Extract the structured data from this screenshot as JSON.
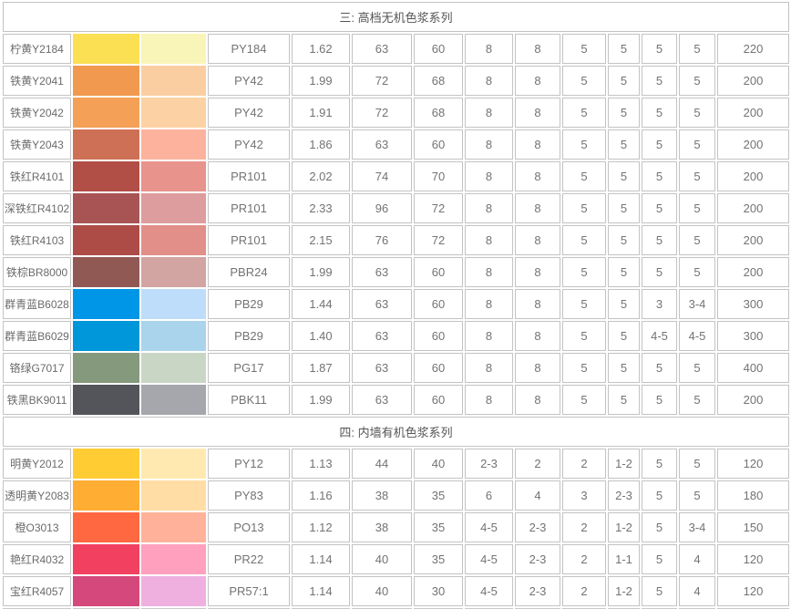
{
  "colors": {
    "border": "#c3c3c3",
    "text": "#737373",
    "title_text": "#555555",
    "background": "#ffffff"
  },
  "table": {
    "sections": [
      {
        "title": "三: 高档无机色浆系列",
        "rows": [
          {
            "name": "柠黄Y2184",
            "swatch": "#FCE054",
            "tint": "#F9F5B8",
            "index": "PY184",
            "density": "1.62",
            "values": [
              "63",
              "60",
              "8",
              "8",
              "5",
              "5",
              "5",
              "5",
              "220"
            ]
          },
          {
            "name": "铁黄Y2041",
            "swatch": "#F0994F",
            "tint": "#FBCEA2",
            "index": "PY42",
            "density": "1.99",
            "values": [
              "72",
              "68",
              "8",
              "8",
              "5",
              "5",
              "5",
              "5",
              "200"
            ]
          },
          {
            "name": "铁黄Y2042",
            "swatch": "#F4A056",
            "tint": "#FCD1A3",
            "index": "PY42",
            "density": "1.91",
            "values": [
              "72",
              "68",
              "8",
              "8",
              "5",
              "5",
              "5",
              "5",
              "200"
            ]
          },
          {
            "name": "铁黄Y2043",
            "swatch": "#CE7055",
            "tint": "#FCB29D",
            "index": "PY42",
            "density": "1.86",
            "values": [
              "63",
              "60",
              "8",
              "8",
              "5",
              "5",
              "5",
              "5",
              "200"
            ]
          },
          {
            "name": "铁红R4101",
            "swatch": "#B14E45",
            "tint": "#E8938C",
            "index": "PR101",
            "density": "2.02",
            "values": [
              "74",
              "70",
              "8",
              "8",
              "5",
              "5",
              "5",
              "5",
              "200"
            ]
          },
          {
            "name": "深铁红R4102",
            "swatch": "#A85455",
            "tint": "#DD9C9D",
            "index": "PR101",
            "density": "2.33",
            "values": [
              "96",
              "72",
              "8",
              "8",
              "5",
              "5",
              "5",
              "5",
              "200"
            ]
          },
          {
            "name": "铁红R4103",
            "swatch": "#AD4C46",
            "tint": "#E18F88",
            "index": "PR101",
            "density": "2.15",
            "values": [
              "76",
              "72",
              "8",
              "8",
              "5",
              "5",
              "5",
              "5",
              "200"
            ]
          },
          {
            "name": "铁棕BR8000",
            "swatch": "#905953",
            "tint": "#D2A4A2",
            "index": "PBR24",
            "density": "1.99",
            "values": [
              "63",
              "60",
              "8",
              "8",
              "5",
              "5",
              "5",
              "5",
              "200"
            ]
          },
          {
            "name": "群青蓝B6028",
            "swatch": "#0096E8",
            "tint": "#BEDDFB",
            "index": "PB29",
            "density": "1.44",
            "values": [
              "63",
              "60",
              "8",
              "8",
              "5",
              "5",
              "3",
              "3-4",
              "300"
            ]
          },
          {
            "name": "群青蓝B6029",
            "swatch": "#0096DA",
            "tint": "#AAD3EC",
            "index": "PB29",
            "density": "1.40",
            "values": [
              "63",
              "60",
              "8",
              "8",
              "5",
              "5",
              "4-5",
              "4-5",
              "300"
            ]
          },
          {
            "name": "铬绿G7017",
            "swatch": "#85997C",
            "tint": "#CAD6C5",
            "index": "PG17",
            "density": "1.87",
            "values": [
              "63",
              "60",
              "8",
              "8",
              "5",
              "5",
              "5",
              "5",
              "400"
            ]
          },
          {
            "name": "铁黑BK9011",
            "swatch": "#54555B",
            "tint": "#A6A6AD",
            "index": "PBK11",
            "density": "1.99",
            "values": [
              "63",
              "60",
              "8",
              "8",
              "5",
              "5",
              "5",
              "5",
              "200"
            ]
          }
        ]
      },
      {
        "title": "四: 内墙有机色浆系列",
        "rows": [
          {
            "name": "明黄Y2012",
            "swatch": "#FFCC33",
            "tint": "#FFE9B0",
            "index": "PY12",
            "density": "1.13",
            "values": [
              "44",
              "40",
              "2-3",
              "2",
              "2",
              "1-2",
              "5",
              "5",
              "120"
            ]
          },
          {
            "name": "透明黄Y2083",
            "swatch": "#FFAD33",
            "tint": "#FFDDA4",
            "index": "PY83",
            "density": "1.16",
            "values": [
              "38",
              "35",
              "6",
              "4",
              "3",
              "2-3",
              "5",
              "5",
              "180"
            ]
          },
          {
            "name": "橙O3013",
            "swatch": "#FF6841",
            "tint": "#FFB299",
            "index": "PO13",
            "density": "1.12",
            "values": [
              "38",
              "35",
              "4-5",
              "2-3",
              "2",
              "1-2",
              "5",
              "3-4",
              "150"
            ]
          },
          {
            "name": "艳红R4032",
            "swatch": "#F24060",
            "tint": "#FFA0BE",
            "index": "PR22",
            "density": "1.14",
            "values": [
              "40",
              "35",
              "4-5",
              "2-3",
              "2",
              "1-1",
              "5",
              "4",
              "120"
            ]
          },
          {
            "name": "宝红R4057",
            "swatch": "#D4487B",
            "tint": "#EFB0DF",
            "index": "PR57:1",
            "density": "1.14",
            "values": [
              "40",
              "30",
              "4-5",
              "2-3",
              "2",
              "1-2",
              "5",
              "4",
              "120"
            ]
          }
        ]
      }
    ]
  }
}
